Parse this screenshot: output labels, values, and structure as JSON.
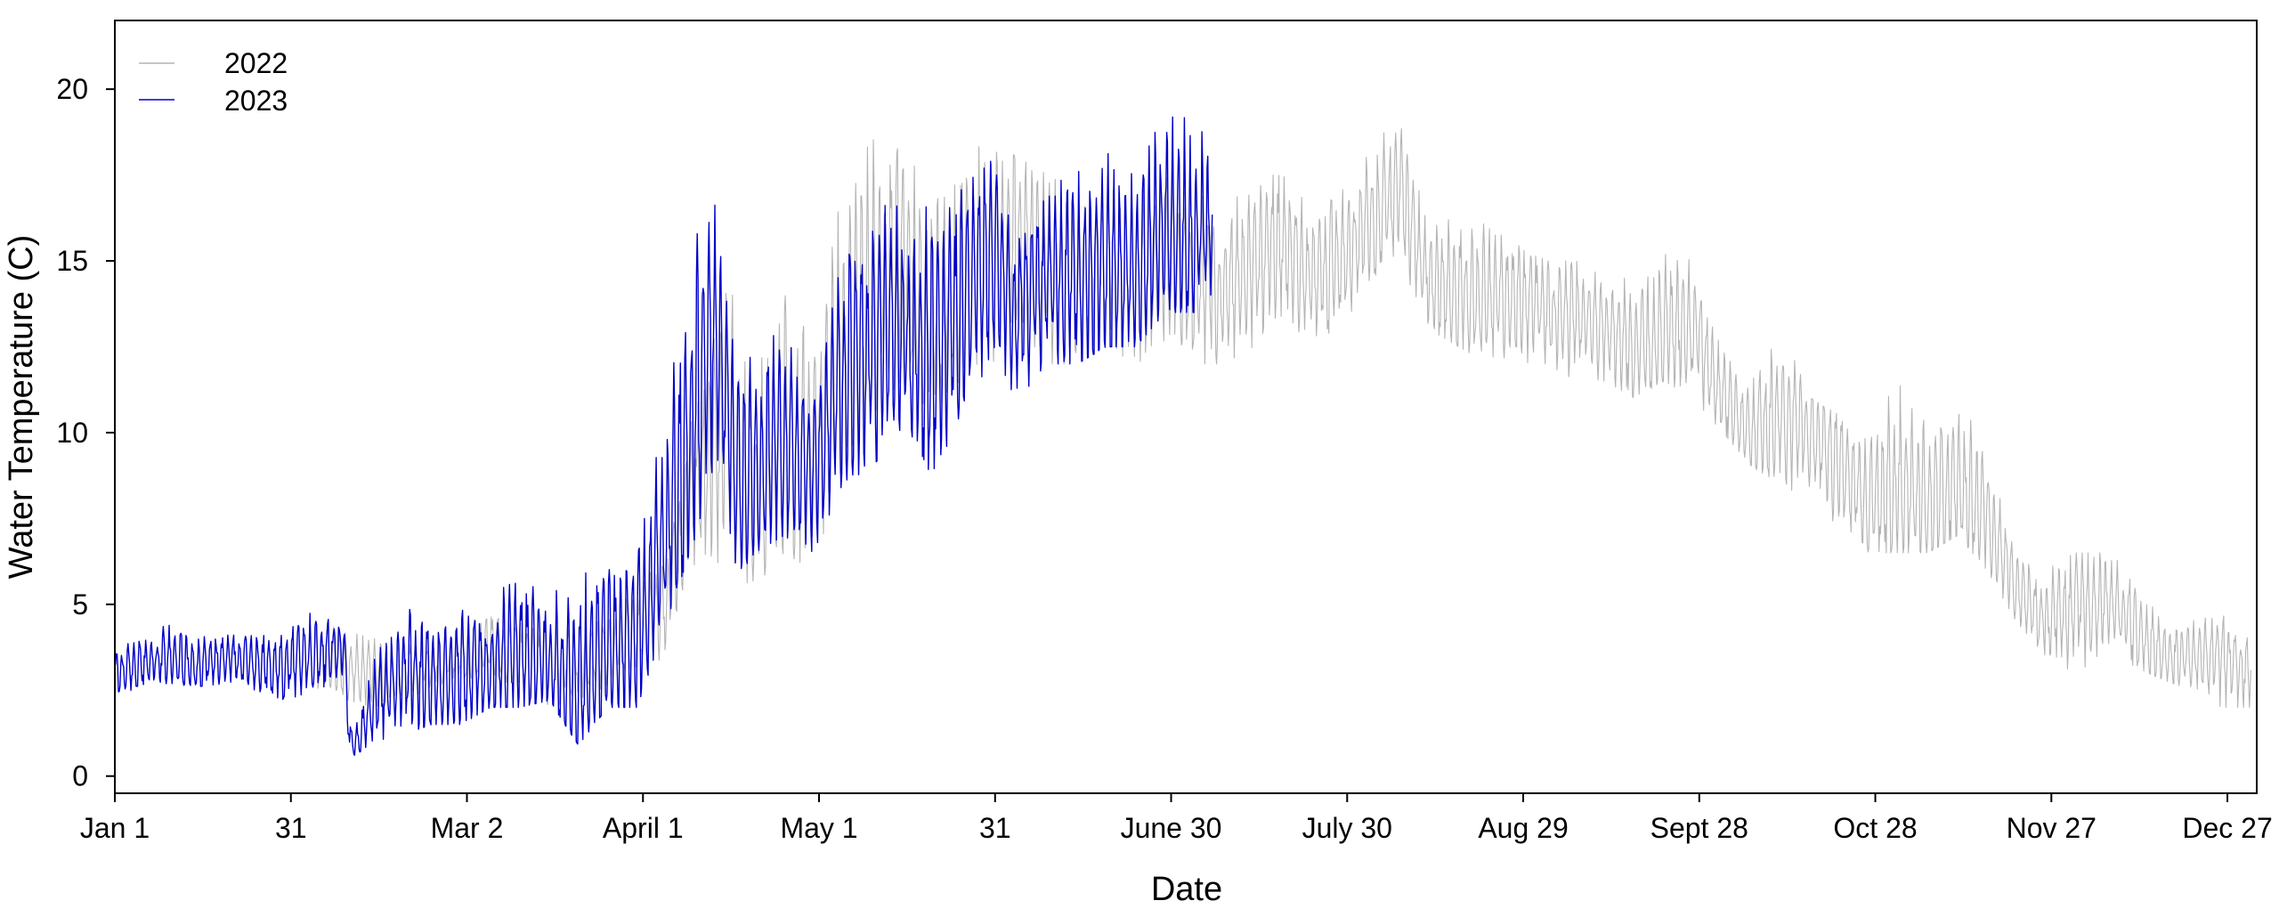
{
  "chart_data": {
    "type": "line",
    "title": "",
    "xlabel": "Date",
    "ylabel": "Water Temperature (C)",
    "x_unit": "day of year",
    "xlim": [
      1,
      366
    ],
    "ylim": [
      -0.5,
      22
    ],
    "x_ticks": [
      {
        "label": "Jan 1",
        "day": 1
      },
      {
        "label": "31",
        "day": 31
      },
      {
        "label": "Mar 2",
        "day": 61
      },
      {
        "label": "April 1",
        "day": 91
      },
      {
        "label": "May 1",
        "day": 121
      },
      {
        "label": "31",
        "day": 151
      },
      {
        "label": "June 30",
        "day": 181
      },
      {
        "label": "July 30",
        "day": 211
      },
      {
        "label": "Aug 29",
        "day": 241
      },
      {
        "label": "Sept 28",
        "day": 271
      },
      {
        "label": "Oct 28",
        "day": 301
      },
      {
        "label": "Nov 27",
        "day": 331
      },
      {
        "label": "Dec 27",
        "day": 361
      }
    ],
    "y_ticks": [
      0,
      5,
      10,
      15,
      20
    ],
    "grid": false,
    "legend": {
      "position": "top-left",
      "entries": [
        "2022",
        "2023"
      ]
    },
    "series": [
      {
        "name": "2022",
        "color": "#b4b4b4",
        "note_values": "approximate daily mean / daily min / daily max read from the plot",
        "days": [
          35,
          45,
          55,
          65,
          75,
          85,
          95,
          100,
          105,
          110,
          115,
          120,
          125,
          130,
          135,
          140,
          145,
          150,
          155,
          160,
          165,
          170,
          175,
          180,
          185,
          190,
          195,
          200,
          205,
          210,
          215,
          220,
          225,
          230,
          235,
          240,
          245,
          250,
          255,
          260,
          265,
          270,
          275,
          280,
          285,
          290,
          295,
          300,
          305,
          310,
          315,
          320,
          325,
          330,
          335,
          340,
          345,
          350,
          355,
          360,
          365
        ],
        "mean": [
          3.5,
          3.0,
          3.3,
          3.8,
          3.2,
          3.6,
          5.0,
          8.5,
          10.5,
          8.0,
          10.0,
          9.0,
          12.5,
          14.0,
          15.0,
          13.5,
          14.5,
          15.0,
          15.5,
          15.0,
          14.5,
          15.0,
          14.5,
          15.0,
          14.5,
          14.0,
          15.0,
          15.5,
          14.5,
          15.0,
          16.0,
          17.0,
          14.5,
          14.0,
          14.0,
          14.0,
          13.5,
          13.5,
          13.0,
          12.5,
          13.0,
          13.0,
          11.0,
          10.0,
          10.5,
          10.0,
          9.0,
          8.0,
          8.5,
          8.0,
          8.5,
          7.5,
          5.5,
          4.5,
          5.0,
          5.0,
          4.5,
          3.5,
          3.5,
          3.5,
          3.0
        ],
        "min": [
          2.5,
          2.0,
          2.5,
          3.0,
          2.0,
          2.5,
          3.5,
          6.0,
          6.0,
          5.5,
          6.5,
          6.0,
          9.0,
          10.5,
          11.5,
          10.5,
          11.5,
          12.0,
          12.5,
          12.0,
          12.0,
          12.5,
          12.0,
          12.5,
          12.0,
          12.0,
          12.5,
          13.0,
          12.5,
          13.0,
          14.5,
          15.0,
          13.0,
          12.5,
          12.0,
          12.0,
          12.0,
          11.5,
          11.5,
          11.0,
          11.5,
          11.0,
          10.0,
          9.0,
          8.5,
          8.0,
          7.0,
          6.5,
          6.5,
          6.5,
          7.0,
          6.0,
          4.5,
          3.5,
          3.0,
          3.5,
          3.2,
          2.8,
          2.5,
          2.0,
          2.0
        ],
        "max": [
          4.5,
          4.0,
          4.0,
          4.8,
          4.5,
          4.5,
          6.5,
          11.0,
          15.0,
          11.0,
          16.0,
          13.0,
          17.5,
          18.5,
          19.0,
          17.0,
          18.0,
          18.5,
          18.0,
          17.5,
          17.0,
          17.5,
          17.0,
          17.5,
          17.0,
          16.5,
          17.5,
          17.5,
          16.5,
          17.0,
          18.5,
          19.0,
          16.0,
          16.5,
          16.0,
          15.5,
          15.0,
          15.0,
          14.5,
          14.5,
          15.5,
          15.0,
          12.5,
          12.0,
          13.0,
          11.0,
          10.5,
          10.5,
          11.5,
          11.0,
          11.5,
          9.5,
          7.0,
          6.0,
          6.5,
          6.5,
          6.0,
          5.0,
          4.5,
          5.0,
          4.5
        ]
      },
      {
        "name": "2023",
        "color": "#0000c8",
        "note_values": "approximate daily mean / daily min / daily max read from the plot",
        "days": [
          1,
          5,
          10,
          15,
          20,
          25,
          30,
          35,
          40,
          41,
          42,
          45,
          50,
          55,
          60,
          65,
          70,
          75,
          80,
          85,
          90,
          95,
          100,
          103,
          105,
          108,
          110,
          115,
          120,
          125,
          130,
          135,
          140,
          145,
          150,
          155,
          160,
          165,
          170,
          175,
          180,
          185,
          188
        ],
        "mean": [
          3.0,
          3.2,
          3.5,
          3.2,
          3.5,
          3.3,
          3.2,
          3.5,
          3.8,
          1.0,
          0.9,
          2.0,
          3.0,
          2.8,
          3.0,
          3.2,
          3.5,
          3.4,
          2.5,
          3.8,
          4.0,
          7.0,
          10.5,
          13.5,
          11.0,
          8.5,
          9.0,
          9.5,
          9.0,
          11.5,
          12.5,
          13.0,
          12.0,
          13.5,
          15.0,
          13.5,
          14.5,
          14.5,
          15.0,
          14.5,
          16.0,
          15.5,
          16.0
        ],
        "min": [
          2.4,
          2.5,
          2.7,
          2.6,
          2.7,
          2.5,
          2.2,
          2.5,
          2.8,
          0.7,
          0.6,
          1.0,
          1.2,
          1.5,
          1.5,
          2.0,
          2.0,
          2.2,
          0.9,
          2.0,
          2.0,
          4.5,
          7.0,
          9.0,
          6.5,
          6.0,
          6.5,
          7.0,
          6.5,
          8.5,
          9.0,
          10.0,
          8.5,
          10.5,
          12.0,
          11.0,
          12.0,
          12.0,
          12.5,
          12.5,
          13.5,
          13.5,
          14.0
        ],
        "max": [
          3.8,
          4.1,
          4.4,
          4.5,
          4.1,
          4.2,
          4.4,
          4.8,
          5.1,
          1.8,
          1.5,
          3.5,
          4.7,
          5.3,
          5.5,
          5.5,
          7.0,
          5.5,
          6.5,
          6.8,
          7.0,
          10.5,
          17.5,
          17.0,
          14.0,
          13.8,
          12.5,
          13.0,
          11.0,
          15.5,
          16.5,
          17.0,
          16.5,
          18.0,
          18.0,
          16.0,
          17.5,
          17.5,
          19.5,
          17.5,
          20.7,
          19.2,
          18.8
        ]
      }
    ]
  }
}
